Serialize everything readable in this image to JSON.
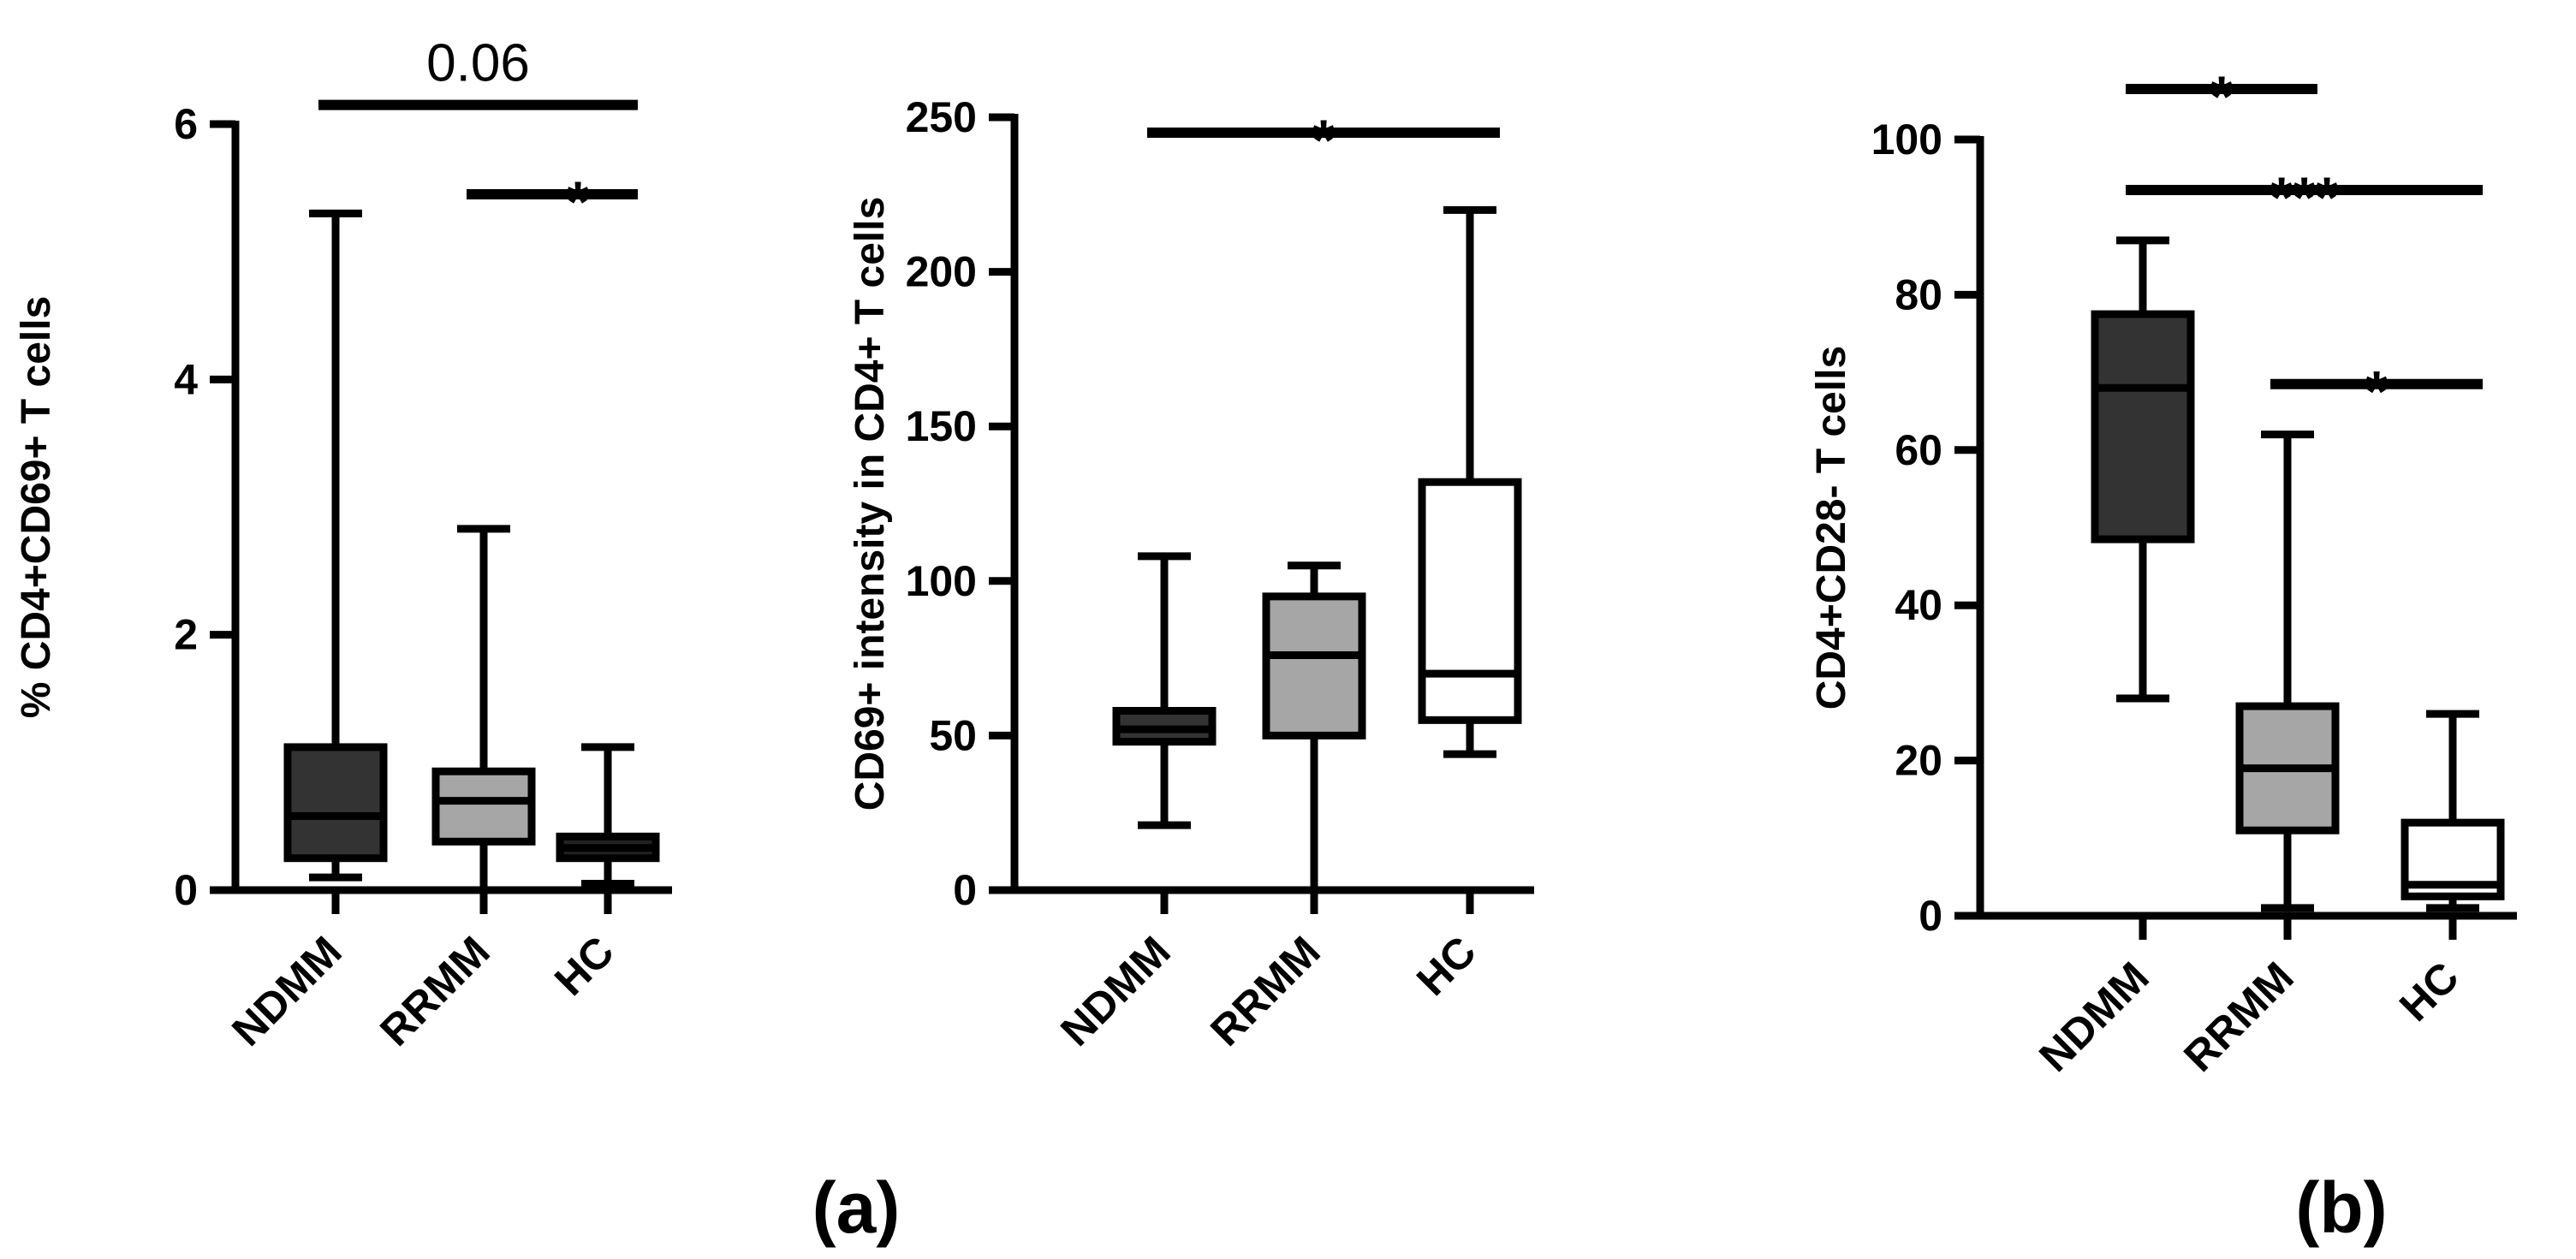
{
  "panel_labels": [
    "(a)",
    "(b)"
  ],
  "chart_data": [
    {
      "type": "box",
      "title": "",
      "panel": "(a)",
      "ylabel": "% CD4+CD69+ T cells",
      "xlabel": "",
      "ylim": [
        0,
        6
      ],
      "yticks": [
        0,
        2,
        4,
        6
      ],
      "categories": [
        "NDMM",
        "RRMM",
        "HC"
      ],
      "series": [
        {
          "name": "NDMM",
          "color": "#333333",
          "min": 0.1,
          "q1": 0.25,
          "median": 0.58,
          "q3": 1.12,
          "max": 5.3
        },
        {
          "name": "RRMM",
          "color": "#a6a6a6",
          "min": 0.0,
          "q1": 0.38,
          "median": 0.7,
          "q3": 0.93,
          "max": 2.83
        },
        {
          "name": "HC",
          "color": "#222222",
          "min": 0.05,
          "q1": 0.25,
          "median": 0.33,
          "q3": 0.42,
          "max": 1.12
        }
      ],
      "annotations": [
        {
          "from": "NDMM",
          "to": "HC",
          "label": "0.06",
          "y": 6.15
        },
        {
          "from": "RRMM",
          "to": "HC",
          "label": "*",
          "y": 5.45
        }
      ]
    },
    {
      "type": "box",
      "title": "",
      "panel": "(a)",
      "ylabel": "CD69+ intensity in CD4+ T cells",
      "xlabel": "",
      "ylim": [
        0,
        250
      ],
      "yticks": [
        0,
        50,
        100,
        150,
        200,
        250
      ],
      "categories": [
        "NDMM",
        "RRMM",
        "HC"
      ],
      "series": [
        {
          "name": "NDMM",
          "color": "#333333",
          "min": 21,
          "q1": 48,
          "median": 52,
          "q3": 58,
          "max": 108
        },
        {
          "name": "RRMM",
          "color": "#a6a6a6",
          "min": 0,
          "q1": 50,
          "median": 76,
          "q3": 95,
          "max": 105
        },
        {
          "name": "HC",
          "color": "#ffffff",
          "min": 44,
          "q1": 55,
          "median": 70,
          "q3": 132,
          "max": 220
        }
      ],
      "annotations": [
        {
          "from": "NDMM",
          "to": "HC",
          "label": "*",
          "y": 245
        }
      ]
    },
    {
      "type": "box",
      "title": "",
      "panel": "(b)",
      "ylabel": "CD4+CD28- T cells",
      "xlabel": "",
      "ylim": [
        0,
        100
      ],
      "yticks": [
        0,
        20,
        40,
        60,
        80,
        100
      ],
      "categories": [
        "NDMM",
        "RRMM",
        "HC"
      ],
      "series": [
        {
          "name": "NDMM",
          "color": "#333333",
          "min": 28,
          "q1": 48.5,
          "median": 68,
          "q3": 77.5,
          "max": 87
        },
        {
          "name": "RRMM",
          "color": "#a6a6a6",
          "min": 1,
          "q1": 11,
          "median": 19,
          "q3": 27,
          "max": 62
        },
        {
          "name": "HC",
          "color": "#ffffff",
          "min": 1,
          "q1": 2.5,
          "median": 4,
          "q3": 12,
          "max": 26
        }
      ],
      "annotations": [
        {
          "from": "NDMM",
          "to": "RRMM",
          "label": "*",
          "y": 106.5
        },
        {
          "from": "NDMM",
          "to": "HC",
          "label": "***",
          "y": 93.5
        },
        {
          "from": "RRMM",
          "to": "HC",
          "label": "*",
          "y": 68.5
        }
      ]
    }
  ]
}
